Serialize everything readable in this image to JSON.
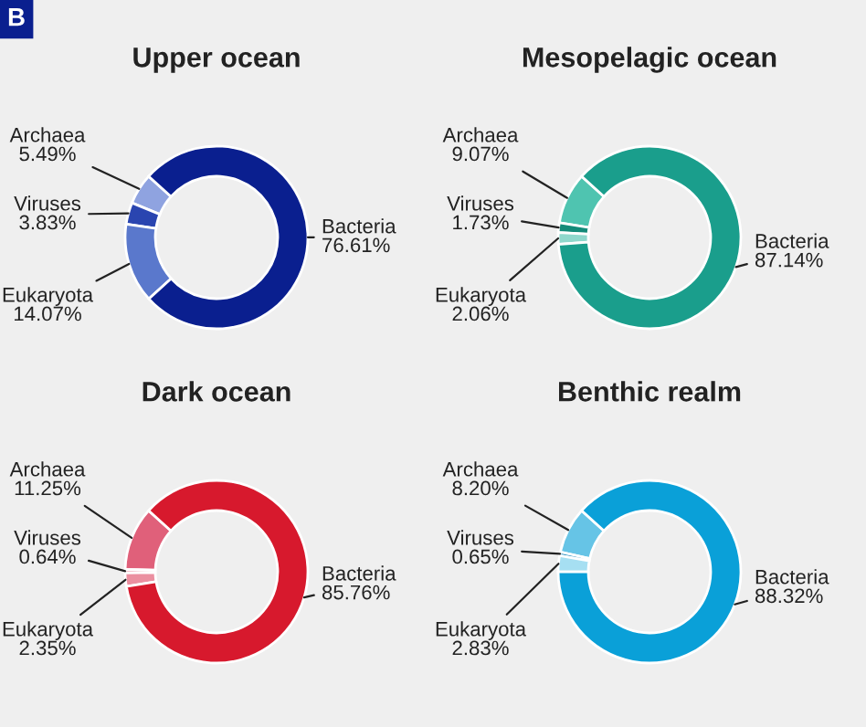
{
  "chart_data": [
    {
      "type": "donut",
      "title": "Upper ocean",
      "annotations": [
        "B"
      ],
      "categories": [
        "Archaea",
        "Viruses",
        "Eukaryota",
        "Bacteria"
      ],
      "values": [
        5.49,
        3.83,
        14.07,
        76.61
      ],
      "value_labels": [
        "5.49%",
        "3.83%",
        "14.07%",
        "76.61%"
      ],
      "colors": [
        "#8fa3e0",
        "#2a45b0",
        "#5a78cc",
        "#0a1f8f"
      ]
    },
    {
      "type": "donut",
      "title": "Mesopelagic ocean",
      "categories": [
        "Archaea",
        "Viruses",
        "Eukaryota",
        "Bacteria"
      ],
      "values": [
        9.07,
        1.73,
        2.06,
        87.14
      ],
      "value_labels": [
        "9.07%",
        "1.73%",
        "2.06%",
        "87.14%"
      ],
      "colors": [
        "#4fc4b0",
        "#138a78",
        "#8fd8cc",
        "#1a9e8c"
      ]
    },
    {
      "type": "donut",
      "title": "Dark ocean",
      "categories": [
        "Archaea",
        "Viruses",
        "Eukaryota",
        "Bacteria"
      ],
      "values": [
        11.25,
        0.64,
        2.35,
        85.76
      ],
      "value_labels": [
        "11.25%",
        "0.64%",
        "2.35%",
        "85.76%"
      ],
      "colors": [
        "#e0607a",
        "#f2b8c4",
        "#eb8fa0",
        "#d7192d"
      ]
    },
    {
      "type": "donut",
      "title": "Benthic realm",
      "categories": [
        "Archaea",
        "Viruses",
        "Eukaryota",
        "Bacteria"
      ],
      "values": [
        8.2,
        0.65,
        2.83,
        88.32
      ],
      "value_labels": [
        "8.20%",
        "0.65%",
        "2.83%",
        "88.32%"
      ],
      "colors": [
        "#66c4e6",
        "#2a8fc0",
        "#a6dff2",
        "#0aa0d8"
      ]
    }
  ]
}
